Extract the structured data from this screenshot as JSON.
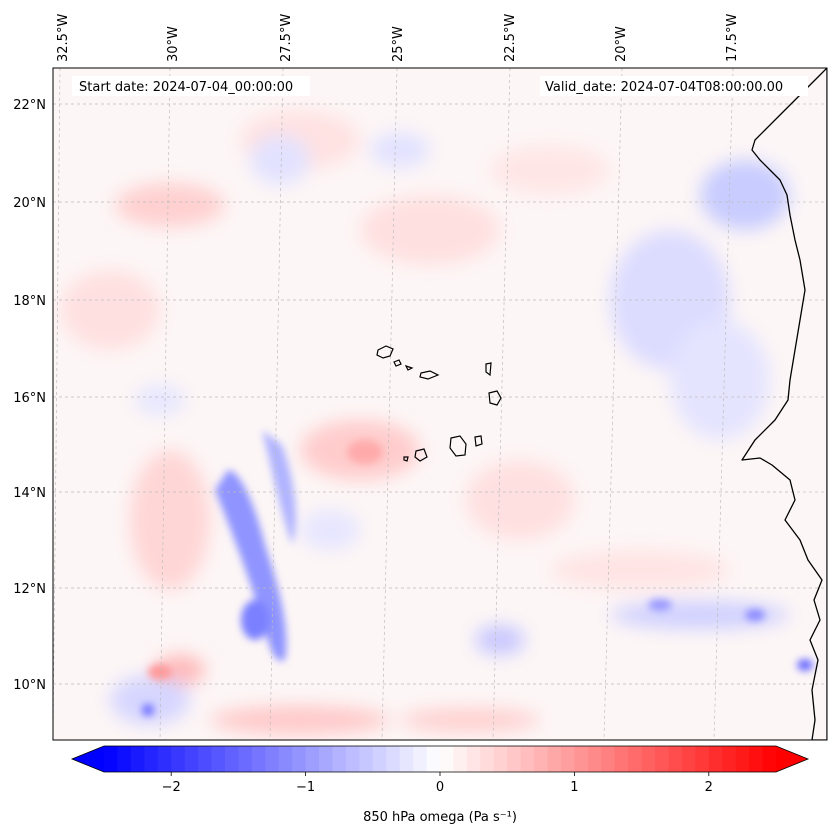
{
  "header": {
    "start_date": "Start date: 2024-07-04_00:00:00",
    "valid_date": "Valid_date: 2024-07-04T08:00:00.00"
  },
  "map": {
    "region": "Cape Verde / West Africa coast",
    "lon_labels": [
      "32.5°W",
      "30°W",
      "27.5°W",
      "25°W",
      "22.5°W",
      "20°W",
      "17.5°W"
    ],
    "lat_labels": [
      "22°N",
      "20°N",
      "18°N",
      "16°N",
      "14°N",
      "12°N",
      "10°N"
    ],
    "lon_range": [
      -32.5,
      -15.0
    ],
    "lat_range": [
      8.8,
      22.8
    ],
    "gridlines": true
  },
  "colorbar": {
    "label": "850 hPa omega (Pa s⁻¹)",
    "ticks": [
      "−2",
      "−1",
      "0",
      "1",
      "2"
    ],
    "tick_values": [
      -2,
      -1,
      0,
      1,
      2
    ],
    "range": [
      -2.5,
      2.5
    ],
    "cmap": "bwr",
    "colors": {
      "low": "#0000ff",
      "mid": "#ffffff",
      "high": "#ff0000"
    },
    "extend": "both"
  }
}
